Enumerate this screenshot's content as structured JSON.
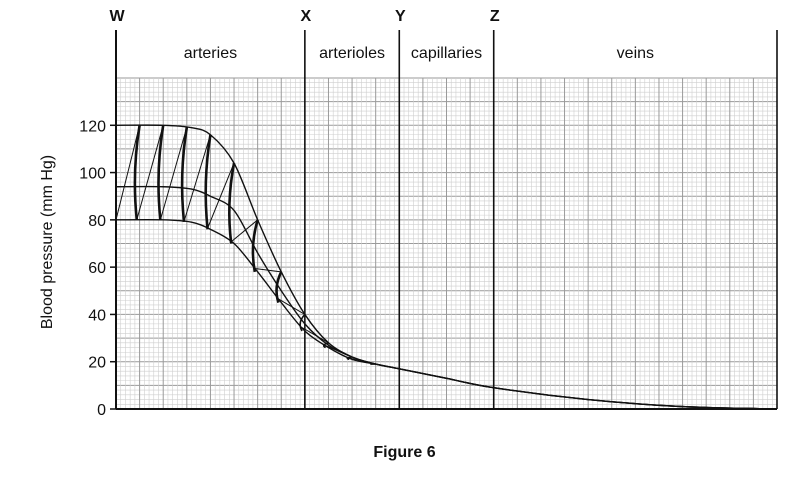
{
  "figure_caption": "Figure 6",
  "chart_data": {
    "type": "line",
    "title": "",
    "xlabel": "",
    "ylabel": "Blood pressure (mm Hg)",
    "ylim": [
      0,
      140
    ],
    "yticks": [
      0,
      20,
      40,
      60,
      80,
      100,
      120
    ],
    "grid": true,
    "boundary_markers": [
      "W",
      "X",
      "Y",
      "Z"
    ],
    "regions": [
      "arteries",
      "arterioles",
      "capillaries",
      "veins"
    ],
    "x": [
      0.0,
      0.5,
      0.8,
      1.0,
      1.25,
      1.5,
      1.75,
      2.0,
      2.25,
      2.5,
      2.75,
      3.0,
      3.5,
      4.0,
      5.0,
      6.0,
      7.0
    ],
    "series": [
      {
        "values": [
          120,
          120,
          119,
          116,
          104,
          80,
          58,
          40,
          28,
          22,
          19,
          17,
          13,
          9,
          4,
          1,
          0
        ]
      },
      {
        "values": [
          80,
          80,
          79,
          76,
          70,
          58,
          45,
          33,
          26,
          21,
          19,
          17,
          13,
          9,
          4,
          1,
          0
        ]
      },
      {
        "values": [
          94,
          94,
          93,
          90,
          84,
          66,
          50,
          36,
          27,
          22,
          19,
          17,
          13,
          9,
          4,
          1,
          0
        ]
      }
    ]
  }
}
